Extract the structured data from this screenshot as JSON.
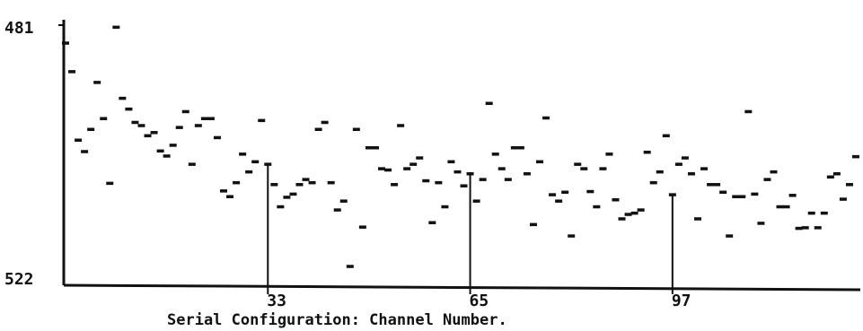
{
  "chart_data": {
    "type": "scatter",
    "title": "",
    "xlabel": "Serial Configuration: Channel Number.",
    "ylabel": "",
    "y_axis": {
      "top_label": "481",
      "bottom_label": "522",
      "top_value": 481,
      "bottom_value": 522,
      "inverted": true
    },
    "x_ticks": [
      {
        "label": "33",
        "value": 33
      },
      {
        "label": "65",
        "value": 65
      },
      {
        "label": "97",
        "value": 97
      }
    ],
    "xlim": [
      1,
      126
    ],
    "grid": false,
    "legend": "none",
    "colors": {
      "ink": "#111111",
      "background": "#ffffff"
    },
    "points": [
      {
        "x": 1,
        "y": 483.8
      },
      {
        "x": 2,
        "y": 488.3
      },
      {
        "x": 3,
        "y": 499.1
      },
      {
        "x": 4,
        "y": 500.9
      },
      {
        "x": 5,
        "y": 497.4
      },
      {
        "x": 6,
        "y": 490.0
      },
      {
        "x": 7,
        "y": 495.7
      },
      {
        "x": 8,
        "y": 505.9
      },
      {
        "x": 9,
        "y": 481.3
      },
      {
        "x": 10,
        "y": 492.5
      },
      {
        "x": 11,
        "y": 494.2
      },
      {
        "x": 12,
        "y": 496.3
      },
      {
        "x": 13,
        "y": 496.8
      },
      {
        "x": 14,
        "y": 498.4
      },
      {
        "x": 15,
        "y": 497.9
      },
      {
        "x": 16,
        "y": 500.8
      },
      {
        "x": 17,
        "y": 501.6
      },
      {
        "x": 18,
        "y": 499.9
      },
      {
        "x": 19,
        "y": 497.1
      },
      {
        "x": 20,
        "y": 494.6
      },
      {
        "x": 21,
        "y": 502.9
      },
      {
        "x": 22,
        "y": 496.8
      },
      {
        "x": 23,
        "y": 495.7
      },
      {
        "x": 24,
        "y": 495.7
      },
      {
        "x": 25,
        "y": 498.7
      },
      {
        "x": 26,
        "y": 507.1
      },
      {
        "x": 27,
        "y": 508.0
      },
      {
        "x": 28,
        "y": 505.8
      },
      {
        "x": 29,
        "y": 501.3
      },
      {
        "x": 30,
        "y": 504.1
      },
      {
        "x": 31,
        "y": 502.5
      },
      {
        "x": 32,
        "y": 496.0
      },
      {
        "x": 33,
        "y": 502.9
      },
      {
        "x": 34,
        "y": 506.1
      },
      {
        "x": 35,
        "y": 509.6
      },
      {
        "x": 36,
        "y": 508.1
      },
      {
        "x": 37,
        "y": 507.6
      },
      {
        "x": 38,
        "y": 506.1
      },
      {
        "x": 39,
        "y": 505.3
      },
      {
        "x": 40,
        "y": 505.8
      },
      {
        "x": 41,
        "y": 497.4
      },
      {
        "x": 42,
        "y": 496.3
      },
      {
        "x": 43,
        "y": 505.8
      },
      {
        "x": 44,
        "y": 510.1
      },
      {
        "x": 45,
        "y": 508.7
      },
      {
        "x": 46,
        "y": 519.0
      },
      {
        "x": 47,
        "y": 497.4
      },
      {
        "x": 48,
        "y": 512.8
      },
      {
        "x": 49,
        "y": 500.3
      },
      {
        "x": 50,
        "y": 500.3
      },
      {
        "x": 51,
        "y": 503.6
      },
      {
        "x": 52,
        "y": 503.8
      },
      {
        "x": 53,
        "y": 506.1
      },
      {
        "x": 54,
        "y": 496.8
      },
      {
        "x": 55,
        "y": 503.6
      },
      {
        "x": 56,
        "y": 502.9
      },
      {
        "x": 57,
        "y": 501.9
      },
      {
        "x": 58,
        "y": 505.5
      },
      {
        "x": 59,
        "y": 512.1
      },
      {
        "x": 60,
        "y": 505.8
      },
      {
        "x": 61,
        "y": 509.6
      },
      {
        "x": 62,
        "y": 502.5
      },
      {
        "x": 63,
        "y": 504.1
      },
      {
        "x": 64,
        "y": 506.3
      },
      {
        "x": 65,
        "y": 504.4
      },
      {
        "x": 66,
        "y": 508.7
      },
      {
        "x": 67,
        "y": 505.3
      },
      {
        "x": 68,
        "y": 493.3
      },
      {
        "x": 69,
        "y": 501.3
      },
      {
        "x": 70,
        "y": 503.6
      },
      {
        "x": 71,
        "y": 505.3
      },
      {
        "x": 72,
        "y": 500.3
      },
      {
        "x": 73,
        "y": 500.3
      },
      {
        "x": 74,
        "y": 504.4
      },
      {
        "x": 75,
        "y": 512.4
      },
      {
        "x": 76,
        "y": 502.5
      },
      {
        "x": 77,
        "y": 495.6
      },
      {
        "x": 78,
        "y": 507.7
      },
      {
        "x": 79,
        "y": 508.7
      },
      {
        "x": 80,
        "y": 507.3
      },
      {
        "x": 81,
        "y": 514.2
      },
      {
        "x": 82,
        "y": 502.9
      },
      {
        "x": 83,
        "y": 503.6
      },
      {
        "x": 84,
        "y": 507.2
      },
      {
        "x": 85,
        "y": 509.6
      },
      {
        "x": 86,
        "y": 503.6
      },
      {
        "x": 87,
        "y": 501.3
      },
      {
        "x": 88,
        "y": 508.5
      },
      {
        "x": 89,
        "y": 511.5
      },
      {
        "x": 90,
        "y": 510.8
      },
      {
        "x": 91,
        "y": 510.6
      },
      {
        "x": 92,
        "y": 510.1
      },
      {
        "x": 93,
        "y": 501.0
      },
      {
        "x": 94,
        "y": 505.8
      },
      {
        "x": 95,
        "y": 504.1
      },
      {
        "x": 96,
        "y": 498.4
      },
      {
        "x": 97,
        "y": 507.7
      },
      {
        "x": 98,
        "y": 502.9
      },
      {
        "x": 99,
        "y": 501.9
      },
      {
        "x": 100,
        "y": 504.4
      },
      {
        "x": 101,
        "y": 511.5
      },
      {
        "x": 102,
        "y": 503.6
      },
      {
        "x": 103,
        "y": 506.1
      },
      {
        "x": 104,
        "y": 506.1
      },
      {
        "x": 105,
        "y": 507.3
      },
      {
        "x": 106,
        "y": 514.2
      },
      {
        "x": 107,
        "y": 508.0
      },
      {
        "x": 108,
        "y": 508.0
      },
      {
        "x": 109,
        "y": 494.6
      },
      {
        "x": 110,
        "y": 507.6
      },
      {
        "x": 111,
        "y": 512.2
      },
      {
        "x": 112,
        "y": 505.3
      },
      {
        "x": 113,
        "y": 504.1
      },
      {
        "x": 114,
        "y": 509.6
      },
      {
        "x": 115,
        "y": 509.6
      },
      {
        "x": 116,
        "y": 507.8
      },
      {
        "x": 117,
        "y": 513.0
      },
      {
        "x": 118,
        "y": 512.9
      },
      {
        "x": 119,
        "y": 510.6
      },
      {
        "x": 120,
        "y": 512.9
      },
      {
        "x": 121,
        "y": 510.6
      },
      {
        "x": 122,
        "y": 504.9
      },
      {
        "x": 123,
        "y": 504.4
      },
      {
        "x": 124,
        "y": 508.4
      },
      {
        "x": 125,
        "y": 506.1
      },
      {
        "x": 126,
        "y": 501.7
      }
    ]
  }
}
